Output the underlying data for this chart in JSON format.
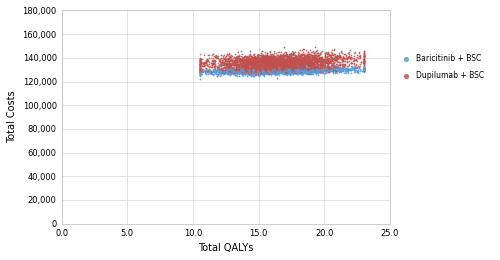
{
  "title": "",
  "xlabel": "Total QALYs",
  "ylabel": "Total Costs",
  "xlim": [
    0.0,
    25.0
  ],
  "ylim": [
    0,
    180000
  ],
  "xticks": [
    0.0,
    5.0,
    10.0,
    15.0,
    20.0,
    25.0
  ],
  "yticks": [
    0,
    20000,
    40000,
    60000,
    80000,
    100000,
    120000,
    140000,
    160000,
    180000
  ],
  "baricitinib_color": "#5b9bd5",
  "dupilumab_color": "#c0504d",
  "baricitinib_label": "Baricitinib + BSC",
  "dupilumab_label": "Dupilumab + BSC",
  "n_points": 3000,
  "bari_qaly_mean": 16.5,
  "bari_qaly_std": 2.8,
  "bari_cost_mean": 129500,
  "bari_cost_std": 1500,
  "dupi_qaly_mean": 16.5,
  "dupi_qaly_std": 2.8,
  "dupi_cost_mean": 137000,
  "dupi_cost_std": 3500,
  "marker_size": 1.5,
  "alpha": 0.85,
  "background_color": "#ffffff",
  "grid_color": "#d8d8d8",
  "legend_fontsize": 5.5,
  "axis_label_fontsize": 7,
  "tick_fontsize": 6
}
